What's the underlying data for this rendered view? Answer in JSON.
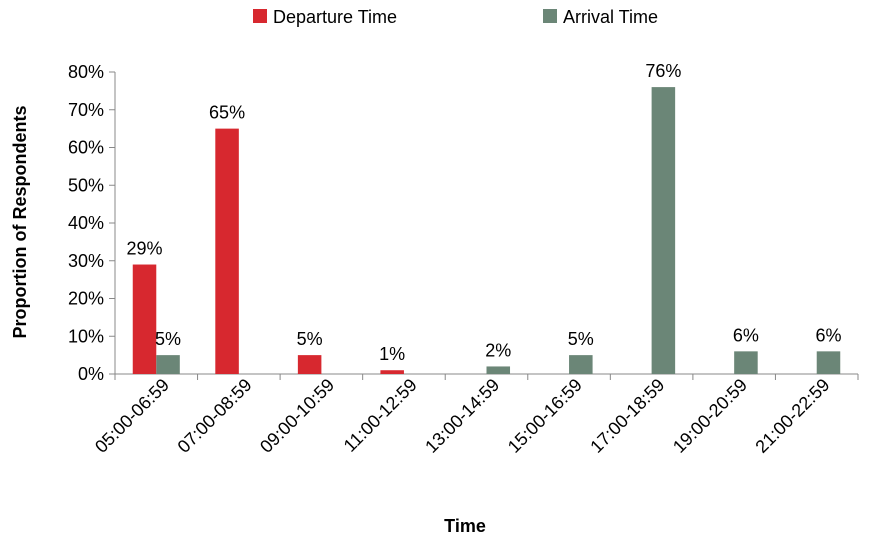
{
  "chart_data": {
    "type": "bar",
    "title": "",
    "xlabel": "Time",
    "ylabel": "Proportion of Respondents",
    "ylim": [
      0,
      80
    ],
    "y_ticks": [
      "0%",
      "10%",
      "20%",
      "30%",
      "40%",
      "50%",
      "60%",
      "70%",
      "80%"
    ],
    "grid": false,
    "legend_position": "top",
    "categories": [
      "05:00-06:59",
      "07:00-08:59",
      "09:00-10:59",
      "11:00-12:59",
      "13:00-14:59",
      "15:00-16:59",
      "17:00-18:59",
      "19:00-20:59",
      "21:00-22:59"
    ],
    "series": [
      {
        "name": "Departure Time",
        "color": "#d7282f",
        "values": [
          29,
          65,
          5,
          1,
          0,
          0,
          0,
          0,
          0
        ],
        "labels": [
          "29%",
          "65%",
          "5%",
          "1%",
          "",
          "",
          "",
          "",
          ""
        ]
      },
      {
        "name": "Arrival Time",
        "color": "#6b8677",
        "values": [
          5,
          0,
          0,
          0,
          2,
          5,
          76,
          6,
          6
        ],
        "labels": [
          "5%",
          "",
          "",
          "",
          "2%",
          "5%",
          "76%",
          "6%",
          "6%"
        ]
      }
    ]
  }
}
